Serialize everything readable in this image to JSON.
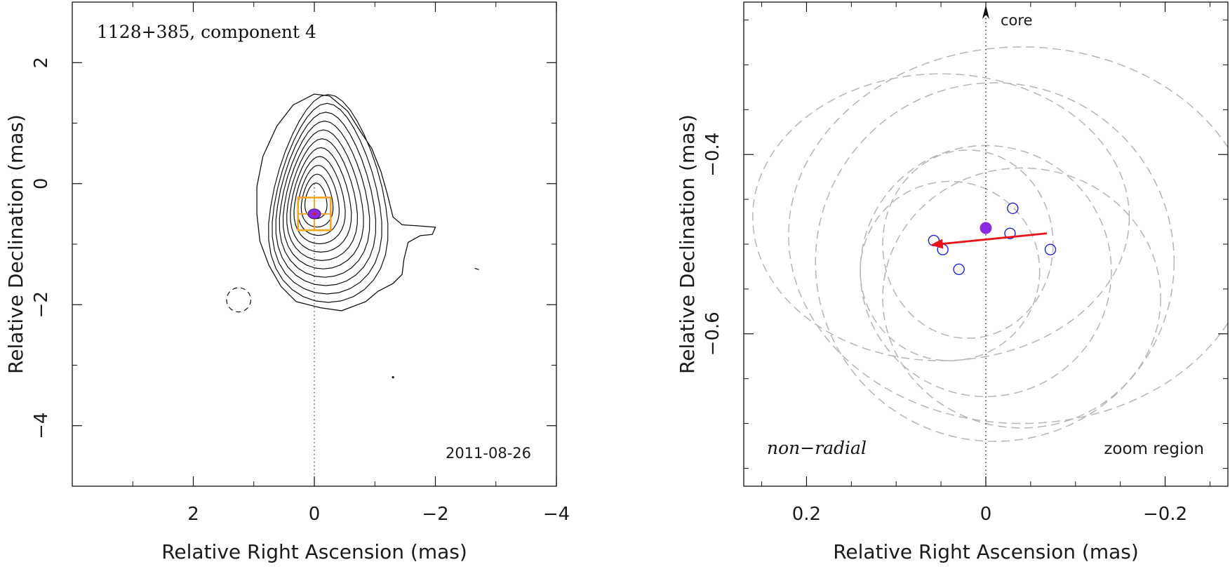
{
  "chart_data": [
    {
      "type": "contour",
      "title": "1128+385, component 4",
      "date": "2011-08-26",
      "xlabel": "Relative Right Ascension (mas)",
      "ylabel": "Relative Declination (mas)",
      "xlim": [
        4.0,
        -4.0
      ],
      "ylim": [
        -5.0,
        3.0
      ],
      "xticks": [
        2,
        0,
        -2,
        -4
      ],
      "xtick_labels": [
        "2",
        "0",
        "−2",
        "−4"
      ],
      "yticks": [
        2,
        0,
        -2,
        -4
      ],
      "ytick_labels": [
        "2",
        "0",
        "−2",
        "−4"
      ],
      "contours": {
        "center": [
          0.0,
          -0.25
        ],
        "outer_extent": {
          "x": [
            1.0,
            -2.0
          ],
          "y": [
            -2.1,
            1.5
          ]
        },
        "levels": 12,
        "negative_contour": {
          "center": [
            1.25,
            -1.92
          ],
          "rx": 0.2,
          "ry": 0.2
        }
      },
      "component_marker": {
        "x": 0.0,
        "y": -0.5
      },
      "zoom_box": {
        "x": [
          0.27,
          -0.27
        ],
        "y": [
          -0.23,
          -0.77
        ]
      },
      "colors": {
        "contour": "#111111",
        "zoom_box": "#f5a623",
        "marker": "#8a2be2"
      }
    },
    {
      "type": "scatter",
      "corner_label_left": "non−radial",
      "corner_label_right": "zoom region",
      "core_label": "core",
      "xlabel": "Relative Right Ascension (mas)",
      "ylabel": "Relative Declination (mas)",
      "xlim": [
        0.27,
        -0.27
      ],
      "ylim": [
        -0.77,
        -0.23
      ],
      "xticks": [
        0.2,
        0,
        -0.2
      ],
      "xtick_labels": [
        "0.2",
        "0",
        "−0.2"
      ],
      "yticks": [
        -0.4,
        -0.6
      ],
      "ytick_labels": [
        "−0.4",
        "−0.6"
      ],
      "mean_position": {
        "x": 0.0,
        "y": -0.482
      },
      "component_positions": [
        {
          "x": 0.058,
          "y": -0.496
        },
        {
          "x": 0.048,
          "y": -0.506
        },
        {
          "x": 0.03,
          "y": -0.528
        },
        {
          "x": -0.03,
          "y": -0.46
        },
        {
          "x": -0.027,
          "y": -0.488
        },
        {
          "x": -0.072,
          "y": -0.506
        }
      ],
      "velocity_vector": {
        "from": [
          -0.068,
          -0.488
        ],
        "to": [
          0.062,
          -0.501
        ]
      },
      "error_ellipses": [
        {
          "cx": 0.05,
          "cy": -0.47,
          "rx": 0.21,
          "ry": 0.16
        },
        {
          "cx": -0.04,
          "cy": -0.49,
          "rx": 0.26,
          "ry": 0.21
        },
        {
          "cx": -0.01,
          "cy": -0.52,
          "rx": 0.2,
          "ry": 0.2
        },
        {
          "cx": 0.0,
          "cy": -0.53,
          "rx": 0.14,
          "ry": 0.14
        },
        {
          "cx": 0.02,
          "cy": -0.5,
          "rx": 0.095,
          "ry": 0.105
        },
        {
          "cx": -0.04,
          "cy": -0.56,
          "rx": 0.155,
          "ry": 0.145
        },
        {
          "cx": 0.04,
          "cy": -0.53,
          "rx": 0.1,
          "ry": 0.1
        }
      ],
      "colors": {
        "ellipse": "#b5b5b5",
        "points": "#1f22d6",
        "mean": "#8a2be2",
        "vector": "#e8141a",
        "core_line": "#111111"
      }
    }
  ]
}
